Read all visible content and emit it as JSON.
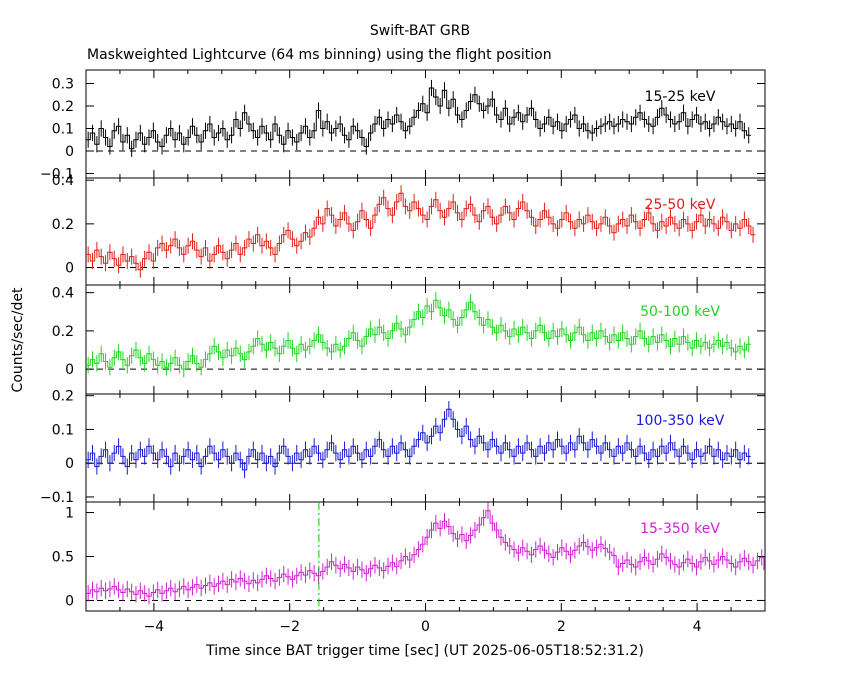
{
  "chart_data": {
    "type": "line",
    "title": "Swift-BAT GRB",
    "subtitle": "Maskweighted Lightcurve (64 ms binning) using the flight position",
    "xlabel": "Time since BAT trigger time [sec] (UT 2025-06-05T18:52:31.2)",
    "ylabel": "Counts/sec/det",
    "xlim": [
      -5,
      5
    ],
    "x_ticks": [
      -4,
      -2,
      0,
      2,
      4
    ],
    "bin_width": 0.064,
    "trigger_marker_x": -1.57,
    "panels": [
      {
        "name": "15-25 keV",
        "color": "#000000",
        "ylim": [
          -0.12,
          0.36
        ],
        "yticks": [
          -0.1,
          0,
          0.1,
          0.2,
          0.3
        ],
        "series": [
          {
            "x_start": -5.0,
            "values": [
              0.05,
              0.08,
              0.03,
              0.1,
              0.06,
              0.02,
              0.09,
              0.11,
              0.04,
              0.07,
              0.01,
              0.05,
              0.08,
              0.03,
              0.06,
              0.09,
              0.04,
              0.02,
              0.07,
              0.1,
              0.05,
              0.08,
              0.03,
              0.06,
              0.11,
              0.07,
              0.04,
              0.09,
              0.12,
              0.06,
              0.08,
              0.1,
              0.05,
              0.07,
              0.14,
              0.1,
              0.17,
              0.12,
              0.09,
              0.06,
              0.11,
              0.08,
              0.05,
              0.12,
              0.07,
              0.03,
              0.09,
              0.06,
              0.04,
              0.08,
              0.11,
              0.06,
              0.09,
              0.18,
              0.1,
              0.13,
              0.08,
              0.1,
              0.12,
              0.07,
              0.05,
              0.11,
              0.09,
              0.06,
              0.02,
              0.08,
              0.12,
              0.15,
              0.1,
              0.14,
              0.12,
              0.16,
              0.13,
              0.09,
              0.11,
              0.15,
              0.18,
              0.21,
              0.17,
              0.28,
              0.24,
              0.2,
              0.27,
              0.19,
              0.23,
              0.16,
              0.14,
              0.18,
              0.22,
              0.25,
              0.21,
              0.18,
              0.2,
              0.23,
              0.16,
              0.14,
              0.19,
              0.12,
              0.15,
              0.17,
              0.13,
              0.16,
              0.19,
              0.14,
              0.1,
              0.12,
              0.15,
              0.11,
              0.13,
              0.09,
              0.12,
              0.14,
              0.16,
              0.1,
              0.12,
              0.09,
              0.08,
              0.1,
              0.11,
              0.12,
              0.13,
              0.11,
              0.12,
              0.14,
              0.13,
              0.12,
              0.15,
              0.17,
              0.14,
              0.12,
              0.11,
              0.15,
              0.19,
              0.16,
              0.14,
              0.12,
              0.13,
              0.17,
              0.11,
              0.14,
              0.16,
              0.12,
              0.13,
              0.1,
              0.12,
              0.15,
              0.13,
              0.11,
              0.12,
              0.1,
              0.13,
              0.09,
              0.07
            ]
          }
        ]
      },
      {
        "name": "25-50 keV",
        "color": "#e0201a",
        "ylim": [
          -0.08,
          0.41
        ],
        "yticks": [
          0,
          0.2,
          0.4
        ],
        "series": [
          {
            "x_start": -5.0,
            "values": [
              0.06,
              0.03,
              0.08,
              0.05,
              0.02,
              0.07,
              0.04,
              0.01,
              0.06,
              0.03,
              0.05,
              0.02,
              -0.01,
              0.04,
              0.07,
              0.03,
              0.09,
              0.11,
              0.08,
              0.1,
              0.13,
              0.09,
              0.06,
              0.1,
              0.12,
              0.08,
              0.05,
              0.09,
              0.03,
              0.06,
              0.1,
              0.07,
              0.04,
              0.08,
              0.11,
              0.06,
              0.09,
              0.13,
              0.11,
              0.15,
              0.1,
              0.12,
              0.09,
              0.06,
              0.11,
              0.15,
              0.17,
              0.13,
              0.1,
              0.12,
              0.16,
              0.14,
              0.18,
              0.23,
              0.2,
              0.27,
              0.24,
              0.19,
              0.22,
              0.25,
              0.2,
              0.17,
              0.21,
              0.26,
              0.22,
              0.18,
              0.24,
              0.29,
              0.32,
              0.27,
              0.24,
              0.3,
              0.34,
              0.28,
              0.26,
              0.3,
              0.27,
              0.24,
              0.22,
              0.28,
              0.31,
              0.26,
              0.23,
              0.27,
              0.3,
              0.25,
              0.22,
              0.27,
              0.29,
              0.24,
              0.21,
              0.26,
              0.28,
              0.23,
              0.2,
              0.24,
              0.28,
              0.25,
              0.22,
              0.27,
              0.3,
              0.26,
              0.23,
              0.19,
              0.22,
              0.26,
              0.23,
              0.2,
              0.18,
              0.22,
              0.25,
              0.21,
              0.18,
              0.22,
              0.2,
              0.24,
              0.21,
              0.18,
              0.2,
              0.23,
              0.19,
              0.16,
              0.2,
              0.22,
              0.19,
              0.24,
              0.21,
              0.18,
              0.22,
              0.25,
              0.2,
              0.17,
              0.21,
              0.19,
              0.23,
              0.2,
              0.18,
              0.22,
              0.2,
              0.17,
              0.21,
              0.24,
              0.19,
              0.22,
              0.2,
              0.18,
              0.23,
              0.21,
              0.17,
              0.2,
              0.18,
              0.22,
              0.19,
              0.15
            ]
          }
        ]
      },
      {
        "name": "50-100 keV",
        "color": "#1fd41f",
        "ylim": [
          -0.13,
          0.44
        ],
        "yticks": [
          0,
          0.2,
          0.4
        ],
        "series": [
          {
            "x_start": -5.0,
            "values": [
              0.02,
              0.05,
              0.03,
              0.08,
              0.04,
              0.01,
              0.06,
              0.09,
              0.05,
              0.02,
              0.07,
              0.1,
              0.06,
              0.03,
              0.08,
              0.05,
              0.02,
              0.04,
              0.01,
              0.03,
              0.06,
              0.02,
              0.0,
              0.04,
              0.07,
              0.03,
              0.01,
              0.05,
              0.08,
              0.12,
              0.09,
              0.06,
              0.1,
              0.07,
              0.11,
              0.08,
              0.05,
              0.09,
              0.12,
              0.16,
              0.13,
              0.1,
              0.14,
              0.11,
              0.08,
              0.12,
              0.15,
              0.11,
              0.08,
              0.13,
              0.1,
              0.12,
              0.15,
              0.18,
              0.14,
              0.11,
              0.09,
              0.13,
              0.1,
              0.12,
              0.16,
              0.19,
              0.15,
              0.12,
              0.17,
              0.21,
              0.18,
              0.22,
              0.19,
              0.16,
              0.2,
              0.24,
              0.21,
              0.18,
              0.22,
              0.26,
              0.3,
              0.27,
              0.33,
              0.3,
              0.36,
              0.32,
              0.28,
              0.31,
              0.26,
              0.23,
              0.27,
              0.31,
              0.35,
              0.3,
              0.27,
              0.23,
              0.26,
              0.22,
              0.19,
              0.23,
              0.2,
              0.17,
              0.21,
              0.18,
              0.22,
              0.19,
              0.16,
              0.2,
              0.23,
              0.19,
              0.16,
              0.2,
              0.17,
              0.21,
              0.18,
              0.15,
              0.19,
              0.22,
              0.18,
              0.15,
              0.19,
              0.16,
              0.2,
              0.17,
              0.14,
              0.18,
              0.15,
              0.19,
              0.16,
              0.13,
              0.17,
              0.2,
              0.16,
              0.13,
              0.17,
              0.14,
              0.18,
              0.15,
              0.12,
              0.16,
              0.13,
              0.17,
              0.14,
              0.11,
              0.15,
              0.12,
              0.14,
              0.11,
              0.13,
              0.15,
              0.12,
              0.14,
              0.11,
              0.09,
              0.12,
              0.1,
              0.13
            ]
          }
        ]
      },
      {
        "name": "100-350 keV",
        "color": "#1a1ad0",
        "ylim": [
          -0.115,
          0.205
        ],
        "yticks": [
          -0.1,
          0,
          0.1,
          0.2
        ],
        "series": [
          {
            "x_start": -5.0,
            "values": [
              0.01,
              0.03,
              -0.01,
              0.02,
              0.04,
              0.0,
              0.03,
              0.05,
              0.02,
              -0.01,
              0.03,
              0.01,
              0.04,
              0.02,
              0.05,
              0.03,
              0.01,
              0.04,
              0.02,
              -0.01,
              0.03,
              0.0,
              0.02,
              0.04,
              0.01,
              0.03,
              -0.01,
              0.02,
              0.05,
              0.03,
              0.01,
              0.04,
              0.02,
              0.0,
              0.03,
              0.01,
              -0.02,
              0.02,
              0.04,
              0.01,
              0.03,
              0.0,
              0.02,
              -0.01,
              0.03,
              0.05,
              0.02,
              0.0,
              0.03,
              0.01,
              0.04,
              0.02,
              0.05,
              0.03,
              0.01,
              0.04,
              0.06,
              0.03,
              0.01,
              0.04,
              0.02,
              0.05,
              0.03,
              0.01,
              0.04,
              0.02,
              0.05,
              0.07,
              0.04,
              0.02,
              0.05,
              0.03,
              0.06,
              0.04,
              0.02,
              0.05,
              0.07,
              0.09,
              0.06,
              0.08,
              0.11,
              0.09,
              0.13,
              0.16,
              0.13,
              0.1,
              0.08,
              0.11,
              0.07,
              0.05,
              0.08,
              0.06,
              0.04,
              0.07,
              0.05,
              0.03,
              0.06,
              0.04,
              0.02,
              0.05,
              0.03,
              0.06,
              0.04,
              0.02,
              0.05,
              0.03,
              0.06,
              0.04,
              0.07,
              0.05,
              0.03,
              0.06,
              0.04,
              0.08,
              0.06,
              0.04,
              0.07,
              0.05,
              0.03,
              0.06,
              0.04,
              0.02,
              0.05,
              0.03,
              0.06,
              0.04,
              0.02,
              0.05,
              0.03,
              0.01,
              0.04,
              0.02,
              0.05,
              0.03,
              0.06,
              0.04,
              0.02,
              0.05,
              0.03,
              0.01,
              0.04,
              0.02,
              0.03,
              0.05,
              0.02,
              0.04,
              0.01,
              0.03,
              0.02,
              0.04,
              0.01,
              0.03,
              0.02
            ]
          }
        ]
      },
      {
        "name": "15-350 keV",
        "color": "#d21fd2",
        "ylim": [
          -0.12,
          1.12
        ],
        "yticks": [
          0,
          0.5,
          1
        ],
        "series": [
          {
            "x_start": -5.0,
            "values": [
              0.08,
              0.12,
              0.1,
              0.14,
              0.11,
              0.13,
              0.16,
              0.12,
              0.09,
              0.13,
              0.1,
              0.07,
              0.11,
              0.08,
              0.05,
              0.09,
              0.12,
              0.08,
              0.11,
              0.14,
              0.1,
              0.13,
              0.16,
              0.12,
              0.15,
              0.18,
              0.14,
              0.17,
              0.2,
              0.16,
              0.19,
              0.22,
              0.18,
              0.24,
              0.21,
              0.25,
              0.22,
              0.19,
              0.23,
              0.2,
              0.24,
              0.28,
              0.25,
              0.22,
              0.26,
              0.3,
              0.27,
              0.24,
              0.28,
              0.32,
              0.29,
              0.34,
              0.31,
              0.28,
              0.33,
              0.38,
              0.44,
              0.4,
              0.36,
              0.41,
              0.37,
              0.33,
              0.38,
              0.35,
              0.31,
              0.36,
              0.4,
              0.37,
              0.34,
              0.39,
              0.43,
              0.39,
              0.45,
              0.5,
              0.46,
              0.52,
              0.58,
              0.64,
              0.72,
              0.8,
              0.88,
              0.82,
              0.9,
              0.84,
              0.76,
              0.7,
              0.75,
              0.68,
              0.74,
              0.8,
              0.86,
              0.94,
              1.02,
              0.88,
              0.8,
              0.72,
              0.66,
              0.62,
              0.58,
              0.54,
              0.6,
              0.56,
              0.52,
              0.58,
              0.62,
              0.57,
              0.53,
              0.49,
              0.55,
              0.6,
              0.56,
              0.52,
              0.57,
              0.62,
              0.66,
              0.61,
              0.57,
              0.6,
              0.64,
              0.59,
              0.55,
              0.51,
              0.38,
              0.42,
              0.46,
              0.41,
              0.38,
              0.44,
              0.49,
              0.45,
              0.41,
              0.47,
              0.53,
              0.49,
              0.45,
              0.41,
              0.38,
              0.43,
              0.47,
              0.42,
              0.38,
              0.44,
              0.49,
              0.45,
              0.41,
              0.46,
              0.5,
              0.46,
              0.42,
              0.38,
              0.44,
              0.48,
              0.44,
              0.4,
              0.45,
              0.49,
              0.35
            ]
          }
        ]
      }
    ]
  }
}
